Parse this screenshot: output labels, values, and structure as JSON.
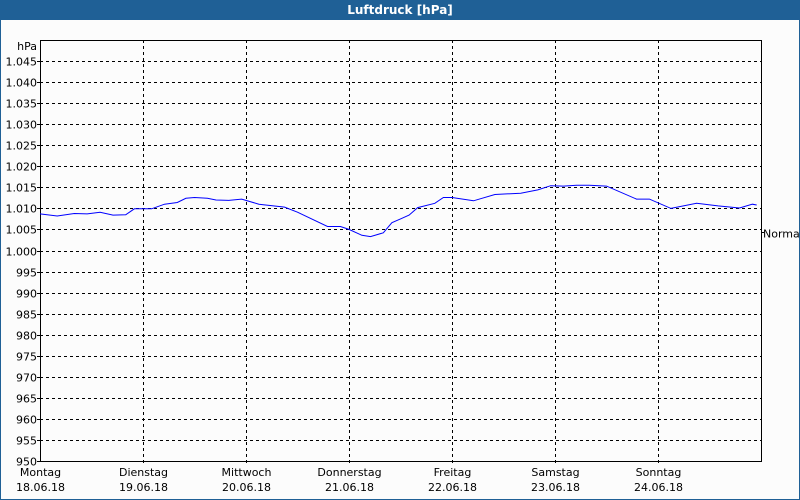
{
  "window": {
    "title": "Luftdruck [hPa]"
  },
  "chart_data": {
    "type": "line",
    "title": "Luftdruck [hPa]",
    "ylabel": "hPa",
    "ylim": [
      950,
      1050
    ],
    "yticks": [
      950,
      955,
      960,
      965,
      970,
      975,
      980,
      985,
      990,
      995,
      1000,
      1005,
      1010,
      1015,
      1020,
      1025,
      1030,
      1035,
      1040,
      1045
    ],
    "ytick_labels": [
      "950",
      "955",
      "960",
      "965",
      "970",
      "975",
      "980",
      "985",
      "990",
      "995",
      "1.000",
      "1.005",
      "1.010",
      "1.015",
      "1.020",
      "1.025",
      "1.030",
      "1.035",
      "1.040",
      "1.045"
    ],
    "xlim": [
      "2018-06-18T00:00",
      "2018-06-25T00:00"
    ],
    "xticks": [
      {
        "day": "Montag",
        "date": "18.06.18"
      },
      {
        "day": "Dienstag",
        "date": "19.06.18"
      },
      {
        "day": "Mittwoch",
        "date": "20.06.18"
      },
      {
        "day": "Donnerstag",
        "date": "21.06.18"
      },
      {
        "day": "Freitag",
        "date": "22.06.18"
      },
      {
        "day": "Samstag",
        "date": "23.06.18"
      },
      {
        "day": "Sonntag",
        "date": "24.06.18"
      }
    ],
    "grid": true,
    "reference": {
      "label": "Normal",
      "value": 1004.5
    },
    "series_color": "#0000ff",
    "series": [
      {
        "x": [
          "2018-06-18T00:00",
          "2018-06-18T04:00",
          "2018-06-18T08:00",
          "2018-06-18T11:00",
          "2018-06-18T14:00",
          "2018-06-18T17:00",
          "2018-06-18T20:00",
          "2018-06-18T22:00",
          "2018-06-19T02:00",
          "2018-06-19T05:00",
          "2018-06-19T08:00",
          "2018-06-19T10:00",
          "2018-06-19T12:00",
          "2018-06-19T15:00",
          "2018-06-19T17:00",
          "2018-06-19T20:00",
          "2018-06-19T23:00",
          "2018-06-20T03:00",
          "2018-06-20T09:00",
          "2018-06-20T12:00",
          "2018-06-20T19:00",
          "2018-06-20T22:00",
          "2018-06-21T00:00",
          "2018-06-21T03:00",
          "2018-06-21T05:00",
          "2018-06-21T08:00",
          "2018-06-21T10:00",
          "2018-06-21T12:00",
          "2018-06-21T14:00",
          "2018-06-21T16:00",
          "2018-06-21T20:00",
          "2018-06-21T22:00",
          "2018-06-22T00:00",
          "2018-06-22T05:00",
          "2018-06-22T10:00",
          "2018-06-22T16:00",
          "2018-06-22T20:00",
          "2018-06-22T23:00",
          "2018-06-23T02:00",
          "2018-06-23T05:00",
          "2018-06-23T08:00",
          "2018-06-23T12:00",
          "2018-06-23T19:00",
          "2018-06-23T22:00",
          "2018-06-24T03:00",
          "2018-06-24T09:00",
          "2018-06-24T14:00",
          "2018-06-24T19:00",
          "2018-06-24T22:00",
          "2018-06-24T23:00"
        ],
        "y": [
          1008.7,
          1008.2,
          1008.8,
          1008.7,
          1009.1,
          1008.4,
          1008.5,
          1009.9,
          1009.9,
          1011.0,
          1011.4,
          1012.4,
          1012.6,
          1012.4,
          1012.0,
          1011.9,
          1012.2,
          1011.0,
          1010.3,
          1009.1,
          1005.7,
          1005.7,
          1005.0,
          1003.6,
          1003.3,
          1004.2,
          1006.6,
          1007.5,
          1008.4,
          1010.2,
          1011.2,
          1012.6,
          1012.6,
          1011.8,
          1013.3,
          1013.6,
          1014.4,
          1015.4,
          1015.3,
          1015.5,
          1015.5,
          1015.3,
          1012.2,
          1012.2,
          1010.0,
          1011.2,
          1010.6,
          1010.1,
          1011.0,
          1010.8
        ]
      }
    ]
  }
}
